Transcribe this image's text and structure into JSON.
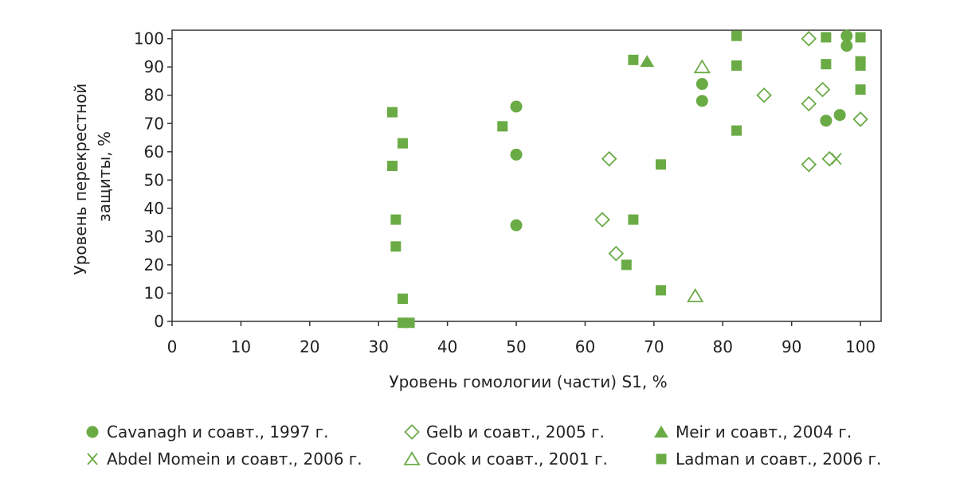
{
  "chart_data": {
    "type": "scatter",
    "xlabel": "Уровень гомологии (части) S1, %",
    "ylabel": [
      "Уровень перекрестной",
      "защиты, %"
    ],
    "xlim": [
      0,
      103
    ],
    "ylim": [
      0,
      103
    ],
    "xticks": [
      0,
      10,
      20,
      30,
      40,
      50,
      60,
      70,
      80,
      90,
      100
    ],
    "yticks": [
      0,
      10,
      20,
      30,
      40,
      50,
      60,
      70,
      80,
      90,
      100
    ],
    "color": "#6aab45",
    "grid": false,
    "legend_position": "bottom",
    "series": [
      {
        "name": "Cavanagh и соавт., 1997 г.",
        "marker": "circle-filled",
        "points": [
          [
            50,
            76
          ],
          [
            50,
            59
          ],
          [
            50,
            34
          ],
          [
            77,
            84
          ],
          [
            77,
            78
          ],
          [
            95,
            71
          ],
          [
            97,
            73
          ],
          [
            98,
            101
          ],
          [
            98,
            97.5
          ]
        ]
      },
      {
        "name": "Gelb и соавт., 2005 г.",
        "marker": "diamond-open",
        "points": [
          [
            63.5,
            57.5
          ],
          [
            62.5,
            36
          ],
          [
            64.5,
            24
          ],
          [
            86,
            80
          ],
          [
            92.5,
            77
          ],
          [
            92.5,
            55.5
          ],
          [
            92.5,
            100
          ],
          [
            94.5,
            82
          ],
          [
            95.5,
            57.5
          ],
          [
            100,
            71.5
          ]
        ]
      },
      {
        "name": "Meir и соавт., 2004 г.",
        "marker": "triangle-filled",
        "points": [
          [
            69,
            92
          ]
        ]
      },
      {
        "name": "Abdel Momein и соавт., 2006 г.",
        "marker": "x",
        "points": [
          [
            96.5,
            57.5
          ]
        ]
      },
      {
        "name": "Cook и соавт., 2001 г.",
        "marker": "triangle-open",
        "points": [
          [
            77,
            90
          ],
          [
            76,
            9
          ]
        ]
      },
      {
        "name": "Ladman и соавт., 2006 г.",
        "marker": "square-filled",
        "points": [
          [
            32,
            74
          ],
          [
            32,
            55
          ],
          [
            32.5,
            36
          ],
          [
            32.5,
            26.5
          ],
          [
            33.5,
            63
          ],
          [
            33.5,
            8
          ],
          [
            33.5,
            -0.5
          ],
          [
            34.5,
            -0.5
          ],
          [
            48,
            69
          ],
          [
            66,
            20
          ],
          [
            67,
            92.5
          ],
          [
            67,
            36
          ],
          [
            71,
            55.5
          ],
          [
            71,
            11
          ],
          [
            82,
            101
          ],
          [
            82,
            90.5
          ],
          [
            82,
            67.5
          ],
          [
            95,
            91
          ],
          [
            95,
            100.5
          ],
          [
            100,
            100.5
          ],
          [
            100,
            92
          ],
          [
            100,
            90.5
          ],
          [
            100,
            82
          ]
        ]
      }
    ]
  }
}
